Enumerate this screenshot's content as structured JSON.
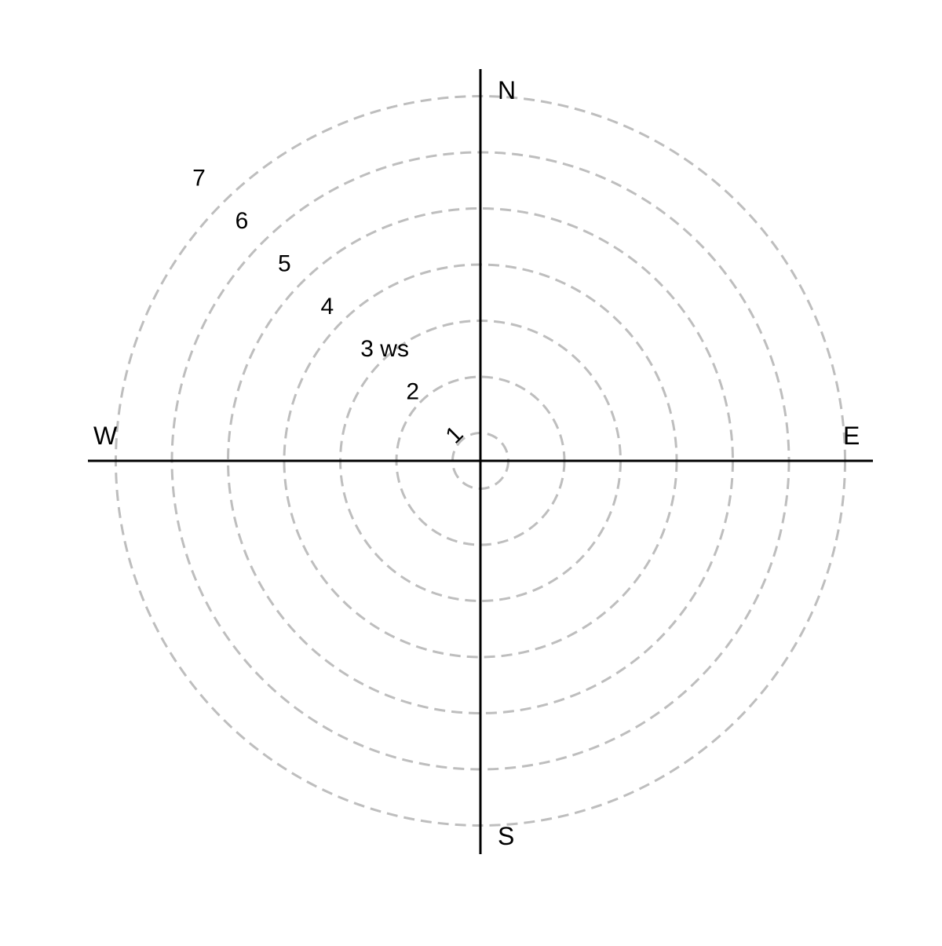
{
  "chart_data": {
    "type": "polar",
    "title": "",
    "radial_axis": {
      "unit_label": "ws",
      "label_on_tick": 3,
      "ticks": [
        1,
        2,
        3,
        4,
        5,
        6,
        7
      ],
      "range": [
        0,
        7
      ],
      "label_bearing": "northwest",
      "grid": true,
      "grid_style": "dashed"
    },
    "compass_labels": {
      "north": "N",
      "south": "S",
      "east": "E",
      "west": "W"
    },
    "series": []
  },
  "colors": {
    "background": "#ffffff",
    "axis": "#000000",
    "grid": "#bebebe",
    "text": "#000000"
  }
}
